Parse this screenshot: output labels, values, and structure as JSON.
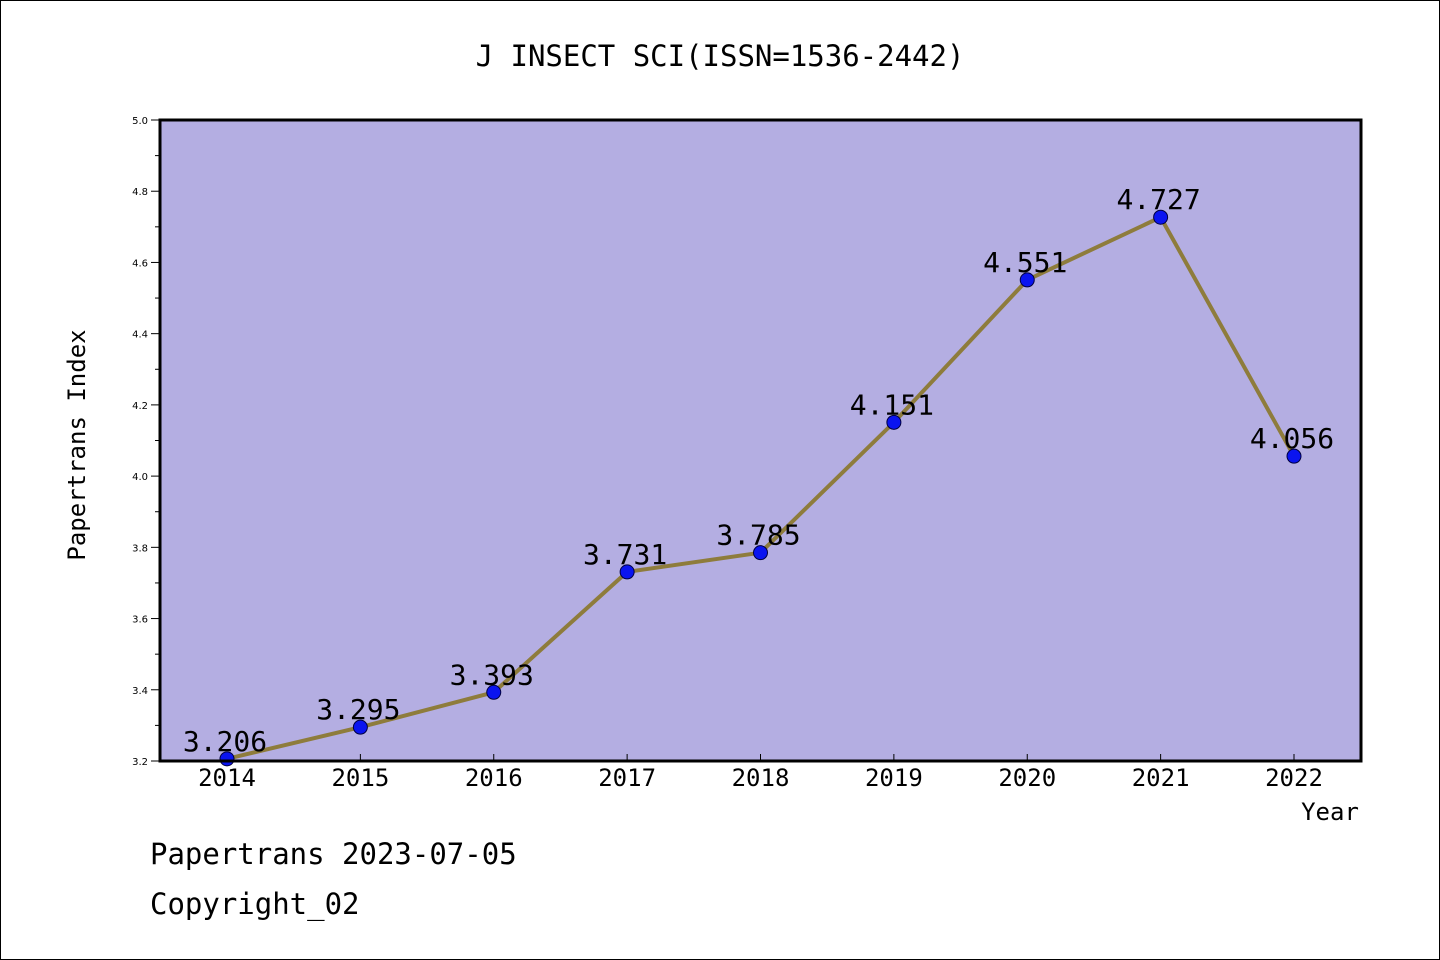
{
  "chart_data": {
    "type": "line",
    "title": "J INSECT SCI(ISSN=1536-2442)",
    "xlabel": "Year",
    "ylabel": "Papertrans Index",
    "categories": [
      "2014",
      "2015",
      "2016",
      "2017",
      "2018",
      "2019",
      "2020",
      "2021",
      "2022"
    ],
    "series": [
      {
        "values": [
          3.206,
          3.295,
          3.393,
          3.731,
          3.785,
          4.151,
          4.551,
          4.727,
          4.056
        ],
        "labels": [
          "3.206",
          "3.295",
          "3.393",
          "3.731",
          "3.785",
          "4.151",
          "4.551",
          "4.727",
          "4.056"
        ]
      }
    ],
    "ylim": [
      3.2,
      5.0
    ],
    "yticks": [
      "3.2",
      "3.4",
      "3.6",
      "3.8",
      "4.0",
      "4.2",
      "4.4",
      "4.6",
      "4.8",
      "5.0"
    ],
    "grid": false,
    "colors": {
      "plot_background": "#b4aee2",
      "line": "#8e7c3c",
      "marker": "#0a14f0",
      "axis": "#000000"
    }
  },
  "footer": {
    "line1": "Papertrans 2023-07-05",
    "line2": "Copyright_02"
  }
}
